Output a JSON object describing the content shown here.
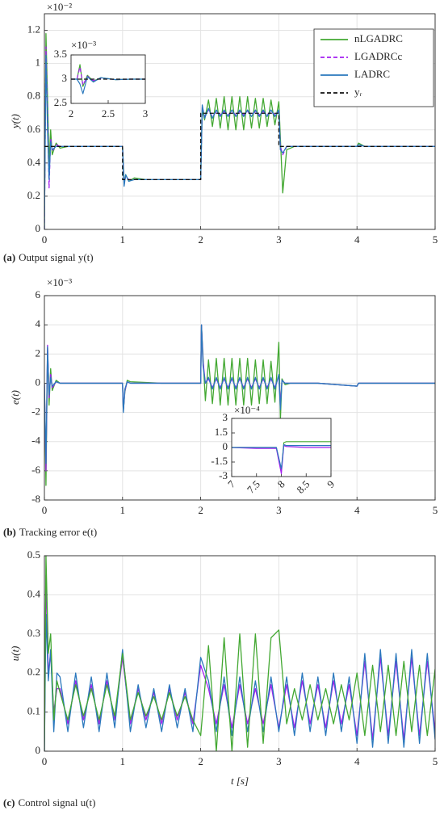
{
  "chart_data": [
    {
      "type": "line",
      "ylabel": "y(t)",
      "y_exponent_label": "×10⁻²",
      "caption_label": "(a)",
      "caption": "Output signal y(t)",
      "xlim": [
        0,
        5
      ],
      "xticks": [
        0,
        1,
        2,
        3,
        4,
        5
      ],
      "ylim": [
        0,
        1.3
      ],
      "yticks": [
        0,
        0.2,
        0.4,
        0.6,
        0.8,
        1,
        1.2
      ],
      "grid": true,
      "legend": "upper right",
      "x": [
        0,
        0.02,
        0.04,
        0.06,
        0.08,
        0.1,
        0.15,
        0.2,
        0.3,
        0.5,
        0.8,
        1.0,
        1.02,
        1.04,
        1.08,
        1.15,
        1.3,
        1.6,
        2.0,
        2.02,
        2.05,
        2.1,
        2.15,
        2.2,
        2.25,
        2.3,
        2.35,
        2.4,
        2.45,
        2.5,
        2.55,
        2.6,
        2.65,
        2.7,
        2.75,
        2.8,
        2.85,
        2.9,
        2.95,
        3.0,
        3.02,
        3.05,
        3.1,
        3.2,
        3.5,
        4.0,
        4.02,
        4.1,
        4.5,
        5.0
      ],
      "series": [
        {
          "name": "nLGADRC",
          "color": "#43a832",
          "dash": false,
          "values": [
            0,
            1.18,
            0.8,
            0.4,
            0.6,
            0.45,
            0.52,
            0.49,
            0.5,
            0.5,
            0.5,
            0.5,
            0.28,
            0.33,
            0.29,
            0.31,
            0.3,
            0.3,
            0.3,
            0.72,
            0.66,
            0.78,
            0.62,
            0.79,
            0.61,
            0.8,
            0.6,
            0.8,
            0.6,
            0.8,
            0.6,
            0.8,
            0.61,
            0.79,
            0.61,
            0.79,
            0.62,
            0.78,
            0.63,
            0.77,
            0.55,
            0.22,
            0.48,
            0.5,
            0.5,
            0.5,
            0.52,
            0.5,
            0.5,
            0.5
          ]
        },
        {
          "name": "LGADRCc",
          "color": "#a31ef0",
          "dash": true,
          "values": [
            0,
            1.1,
            0.7,
            0.25,
            0.55,
            0.47,
            0.51,
            0.5,
            0.5,
            0.5,
            0.5,
            0.5,
            0.27,
            0.32,
            0.3,
            0.3,
            0.3,
            0.3,
            0.3,
            0.74,
            0.68,
            0.72,
            0.68,
            0.71,
            0.69,
            0.71,
            0.69,
            0.71,
            0.69,
            0.71,
            0.69,
            0.71,
            0.69,
            0.71,
            0.69,
            0.71,
            0.69,
            0.71,
            0.69,
            0.71,
            0.5,
            0.45,
            0.5,
            0.5,
            0.5,
            0.5,
            0.51,
            0.5,
            0.5,
            0.5
          ]
        },
        {
          "name": "LADRC",
          "color": "#2a78bd",
          "dash": false,
          "values": [
            0,
            1.05,
            0.6,
            0.3,
            0.53,
            0.48,
            0.5,
            0.5,
            0.5,
            0.5,
            0.5,
            0.5,
            0.26,
            0.33,
            0.29,
            0.3,
            0.3,
            0.3,
            0.3,
            0.75,
            0.67,
            0.73,
            0.67,
            0.72,
            0.68,
            0.72,
            0.68,
            0.72,
            0.68,
            0.72,
            0.68,
            0.72,
            0.68,
            0.72,
            0.68,
            0.72,
            0.68,
            0.72,
            0.68,
            0.72,
            0.48,
            0.46,
            0.5,
            0.5,
            0.5,
            0.5,
            0.51,
            0.5,
            0.5,
            0.5
          ]
        },
        {
          "name": "yᵣ",
          "color": "#111111",
          "dash": true,
          "x": [
            0,
            1,
            1,
            2,
            2,
            3,
            3,
            5
          ],
          "values": [
            0.5,
            0.5,
            0.3,
            0.3,
            0.7,
            0.7,
            0.5,
            0.5
          ]
        }
      ]
    },
    {
      "type": "line",
      "y_exponent_label": "×10⁻³",
      "xlim": [
        2,
        3
      ],
      "xticks": [
        2,
        2.5,
        3
      ],
      "ylim": [
        2.5,
        3.5
      ],
      "yticks": [
        2.5,
        3,
        3.5
      ],
      "grid": false,
      "x": [
        2,
        2.08,
        2.12,
        2.16,
        2.22,
        2.3,
        2.4,
        2.6,
        2.8,
        3
      ],
      "series": [
        {
          "color": "#43a832",
          "dash": false,
          "values": [
            3.0,
            3.0,
            3.3,
            2.85,
            3.08,
            2.96,
            3.03,
            2.99,
            3.0,
            3.0
          ]
        },
        {
          "color": "#a31ef0",
          "dash": true,
          "values": [
            3.0,
            3.0,
            3.25,
            2.88,
            3.06,
            2.97,
            3.02,
            2.99,
            3.0,
            3.0
          ]
        },
        {
          "color": "#2a78bd",
          "dash": false,
          "values": [
            3.0,
            3.0,
            2.9,
            2.7,
            3.05,
            2.94,
            3.03,
            2.99,
            3.0,
            3.0
          ]
        },
        {
          "color": "#111111",
          "dash": true,
          "x": [
            2,
            3
          ],
          "values": [
            3,
            3
          ]
        }
      ]
    },
    {
      "type": "line",
      "ylabel": "e(t)",
      "y_exponent_label": "×10⁻³",
      "caption_label": "(b)",
      "caption": "Tracking error e(t)",
      "xlim": [
        0,
        5
      ],
      "xticks": [
        0,
        1,
        2,
        3,
        4,
        5
      ],
      "ylim": [
        -8,
        6
      ],
      "yticks": [
        -8,
        -6,
        -4,
        -2,
        0,
        2,
        4,
        6
      ],
      "grid": true,
      "x": [
        0,
        0.02,
        0.04,
        0.06,
        0.08,
        0.1,
        0.15,
        0.2,
        0.5,
        1.0,
        1.01,
        1.03,
        1.06,
        1.1,
        1.5,
        2.0,
        2.01,
        2.03,
        2.06,
        2.1,
        2.15,
        2.2,
        2.25,
        2.3,
        2.35,
        2.4,
        2.45,
        2.5,
        2.55,
        2.6,
        2.65,
        2.7,
        2.75,
        2.8,
        2.85,
        2.9,
        2.95,
        3.0,
        3.02,
        3.04,
        3.08,
        3.15,
        3.5,
        4.0,
        4.02,
        4.1,
        5.0
      ],
      "series": [
        {
          "color": "#43a832",
          "dash": false,
          "values": [
            0,
            -7,
            2.4,
            -1.5,
            1,
            -0.5,
            0.2,
            0,
            0,
            0,
            -1.9,
            -0.6,
            0.2,
            0.1,
            0,
            0,
            4,
            1.8,
            -1.2,
            1.6,
            -1.4,
            1.7,
            -1.5,
            1.7,
            -1.5,
            1.7,
            -1.5,
            1.7,
            -1.5,
            1.7,
            -1.5,
            1.6,
            -1.4,
            1.6,
            -1.4,
            1.5,
            -1.3,
            2.8,
            -2.5,
            0.3,
            -0.1,
            0,
            0,
            -0.2,
            0,
            0,
            0
          ]
        },
        {
          "color": "#a31ef0",
          "dash": false,
          "values": [
            0,
            -6,
            2.6,
            -1,
            0.6,
            -0.3,
            0.1,
            0,
            0,
            0,
            -1.9,
            -0.5,
            0.1,
            0,
            0,
            0,
            4,
            1.5,
            0,
            0.3,
            -0.3,
            0.3,
            -0.3,
            0.3,
            -0.3,
            0.3,
            -0.3,
            0.3,
            -0.3,
            0.3,
            -0.3,
            0.3,
            -0.3,
            0.3,
            -0.3,
            0.3,
            -0.3,
            0.5,
            -1.5,
            0.2,
            0,
            0,
            0,
            -0.2,
            0,
            0,
            0
          ]
        },
        {
          "color": "#2a78bd",
          "dash": false,
          "values": [
            0,
            -5.5,
            2.5,
            -0.8,
            0.4,
            -0.2,
            0.1,
            0,
            0,
            0,
            -2,
            -0.4,
            0.1,
            0,
            0,
            0,
            4,
            1.2,
            0,
            0.4,
            -0.4,
            0.4,
            -0.4,
            0.4,
            -0.4,
            0.4,
            -0.4,
            0.4,
            -0.4,
            0.4,
            -0.4,
            0.4,
            -0.4,
            0.4,
            -0.4,
            0.4,
            -0.4,
            0.6,
            -1.8,
            0.2,
            0,
            0,
            0,
            -0.2,
            0,
            0,
            0
          ]
        }
      ]
    },
    {
      "type": "line",
      "y_exponent_label": "×10⁻⁴",
      "xlim": [
        7,
        9
      ],
      "xticks": [
        7,
        7.5,
        8,
        8.5,
        9
      ],
      "ylim": [
        -3,
        3
      ],
      "yticks": [
        -3,
        -1.5,
        0,
        1.5,
        3
      ],
      "grid": false,
      "x": [
        7,
        7.5,
        7.9,
        8,
        8.05,
        8.1,
        8.5,
        9
      ],
      "series": [
        {
          "color": "#43a832",
          "dash": false,
          "values": [
            0,
            0,
            0,
            -2.5,
            0.5,
            0.6,
            0.6,
            0.6
          ]
        },
        {
          "color": "#a31ef0",
          "dash": false,
          "values": [
            0,
            -0.1,
            -0.1,
            -2.7,
            0.2,
            0.1,
            0,
            0
          ]
        },
        {
          "color": "#2a78bd",
          "dash": false,
          "values": [
            0,
            0,
            0,
            -2.2,
            0.3,
            0.2,
            0.2,
            0.2
          ]
        }
      ]
    },
    {
      "type": "line",
      "ylabel": "u(t)",
      "xlabel": "t [s]",
      "caption_label": "(c)",
      "caption": "Control signal u(t)",
      "xlim": [
        0,
        5
      ],
      "xticks": [
        0,
        1,
        2,
        3,
        4,
        5
      ],
      "ylim": [
        0,
        0.5
      ],
      "yticks": [
        0,
        0.1,
        0.2,
        0.3,
        0.4,
        0.5
      ],
      "grid": true,
      "x": [
        0,
        0.02,
        0.05,
        0.08,
        0.12,
        0.16,
        0.2,
        0.3,
        0.4,
        0.5,
        0.6,
        0.7,
        0.8,
        0.9,
        1.0,
        1.1,
        1.2,
        1.3,
        1.4,
        1.5,
        1.6,
        1.7,
        1.8,
        1.9,
        2.0,
        2.1,
        2.2,
        2.3,
        2.4,
        2.5,
        2.6,
        2.7,
        2.8,
        2.9,
        3.0,
        3.1,
        3.2,
        3.3,
        3.4,
        3.5,
        3.6,
        3.7,
        3.8,
        3.9,
        4.0,
        4.1,
        4.2,
        4.3,
        4.4,
        4.5,
        4.6,
        4.7,
        4.8,
        4.9,
        5.0
      ],
      "series": [
        {
          "color": "#a31ef0",
          "dash": false,
          "values": [
            0,
            0.45,
            0.2,
            0.25,
            0.1,
            0.16,
            0.16,
            0.07,
            0.18,
            0.08,
            0.17,
            0.07,
            0.18,
            0.08,
            0.24,
            0.07,
            0.16,
            0.08,
            0.15,
            0.07,
            0.16,
            0.08,
            0.15,
            0.07,
            0.22,
            0.16,
            0.07,
            0.17,
            0.06,
            0.17,
            0.07,
            0.16,
            0.07,
            0.17,
            0.06,
            0.17,
            0.06,
            0.18,
            0.07,
            0.17,
            0.06,
            0.18,
            0.07,
            0.17,
            0.04,
            0.23,
            0.03,
            0.24,
            0.04,
            0.23,
            0.03,
            0.24,
            0.04,
            0.23,
            0.05
          ]
        },
        {
          "color": "#2a78bd",
          "dash": false,
          "values": [
            0,
            0.35,
            0.18,
            0.26,
            0.05,
            0.2,
            0.19,
            0.05,
            0.2,
            0.06,
            0.19,
            0.05,
            0.2,
            0.06,
            0.26,
            0.05,
            0.17,
            0.06,
            0.16,
            0.05,
            0.17,
            0.06,
            0.16,
            0.05,
            0.24,
            0.18,
            0.05,
            0.19,
            0.04,
            0.19,
            0.05,
            0.18,
            0.05,
            0.19,
            0.05,
            0.19,
            0.04,
            0.2,
            0.05,
            0.19,
            0.04,
            0.2,
            0.05,
            0.19,
            0.02,
            0.25,
            0.01,
            0.26,
            0.02,
            0.25,
            0.01,
            0.26,
            0.02,
            0.25,
            0.03
          ]
        },
        {
          "color": "#43a832",
          "dash": false,
          "values": [
            0,
            0.5,
            0.25,
            0.3,
            0.08,
            0.18,
            0.15,
            0.08,
            0.17,
            0.09,
            0.16,
            0.08,
            0.17,
            0.09,
            0.25,
            0.08,
            0.15,
            0.09,
            0.14,
            0.08,
            0.15,
            0.09,
            0.14,
            0.08,
            0.04,
            0.27,
            0.0,
            0.29,
            0.0,
            0.3,
            0.01,
            0.3,
            0.02,
            0.29,
            0.31,
            0.07,
            0.16,
            0.08,
            0.17,
            0.08,
            0.16,
            0.07,
            0.17,
            0.08,
            0.2,
            0.04,
            0.22,
            0.05,
            0.22,
            0.04,
            0.23,
            0.05,
            0.22,
            0.04,
            0.21
          ]
        }
      ]
    }
  ]
}
